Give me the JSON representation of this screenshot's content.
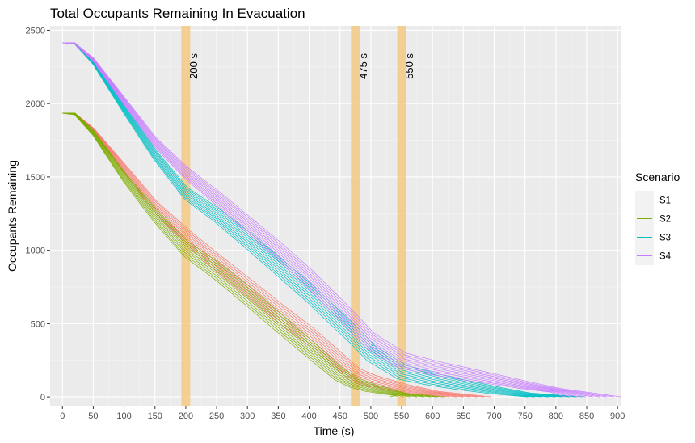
{
  "chart_data": {
    "type": "line",
    "title": "Total Occupants Remaining In Evacuation",
    "xlabel": "Time (s)",
    "ylabel": "Occupants Remaining",
    "xlim": [
      -20,
      905
    ],
    "ylim": [
      -60,
      2530
    ],
    "x_ticks": [
      0,
      50,
      100,
      150,
      200,
      250,
      300,
      350,
      400,
      450,
      500,
      550,
      600,
      650,
      700,
      750,
      800,
      850,
      900
    ],
    "y_ticks": [
      0,
      500,
      1000,
      1500,
      2000,
      2500
    ],
    "grid": true,
    "legend": {
      "title": "Scenario",
      "position": "right"
    },
    "vertical_markers": [
      {
        "x": 200,
        "label": "200 s"
      },
      {
        "x": 475,
        "label": "475 s"
      },
      {
        "x": 550,
        "label": "550 s"
      }
    ],
    "marker_color": "#f5c985",
    "series": [
      {
        "name": "S1",
        "color": "#F8766D",
        "runs": 9,
        "x": [
          0,
          20,
          50,
          100,
          150,
          200,
          250,
          300,
          350,
          400,
          450,
          475,
          500,
          550,
          600,
          650
        ],
        "y": [
          1935,
          1930,
          1820,
          1560,
          1300,
          1100,
          920,
          750,
          580,
          420,
          240,
          150,
          110,
          60,
          25,
          0
        ]
      },
      {
        "name": "S2",
        "color": "#7CAE00",
        "runs": 9,
        "x": [
          0,
          20,
          50,
          100,
          150,
          200,
          250,
          300,
          350,
          400,
          450,
          475,
          500,
          550,
          575
        ],
        "y": [
          1935,
          1930,
          1800,
          1500,
          1240,
          1010,
          860,
          690,
          510,
          330,
          150,
          95,
          60,
          15,
          0
        ]
      },
      {
        "name": "S3",
        "color": "#00BFC4",
        "runs": 9,
        "x": [
          0,
          20,
          50,
          100,
          150,
          200,
          250,
          300,
          350,
          400,
          450,
          475,
          500,
          550,
          600,
          650,
          700,
          750,
          800
        ],
        "y": [
          2415,
          2410,
          2280,
          1960,
          1650,
          1390,
          1240,
          1070,
          890,
          710,
          510,
          410,
          300,
          170,
          120,
          80,
          45,
          15,
          0
        ]
      },
      {
        "name": "S4",
        "color": "#C77CFF",
        "runs": 9,
        "x": [
          0,
          20,
          50,
          100,
          150,
          200,
          250,
          300,
          350,
          400,
          450,
          475,
          500,
          550,
          600,
          650,
          700,
          750,
          800,
          860
        ],
        "y": [
          2415,
          2410,
          2300,
          2020,
          1740,
          1530,
          1360,
          1180,
          1000,
          810,
          600,
          490,
          380,
          250,
          200,
          160,
          120,
          80,
          45,
          0
        ]
      }
    ]
  }
}
